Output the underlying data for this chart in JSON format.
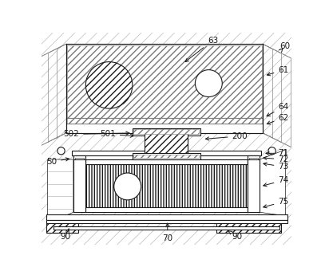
{
  "bg_color": "#ffffff",
  "line_color": "#1a1a1a",
  "fig_width": 4.07,
  "fig_height": 3.45,
  "dpi": 100,
  "gray_line": "#888888",
  "med_line": "#555555",
  "light_gray": "#cccccc",
  "hatch_gray": "#999999"
}
